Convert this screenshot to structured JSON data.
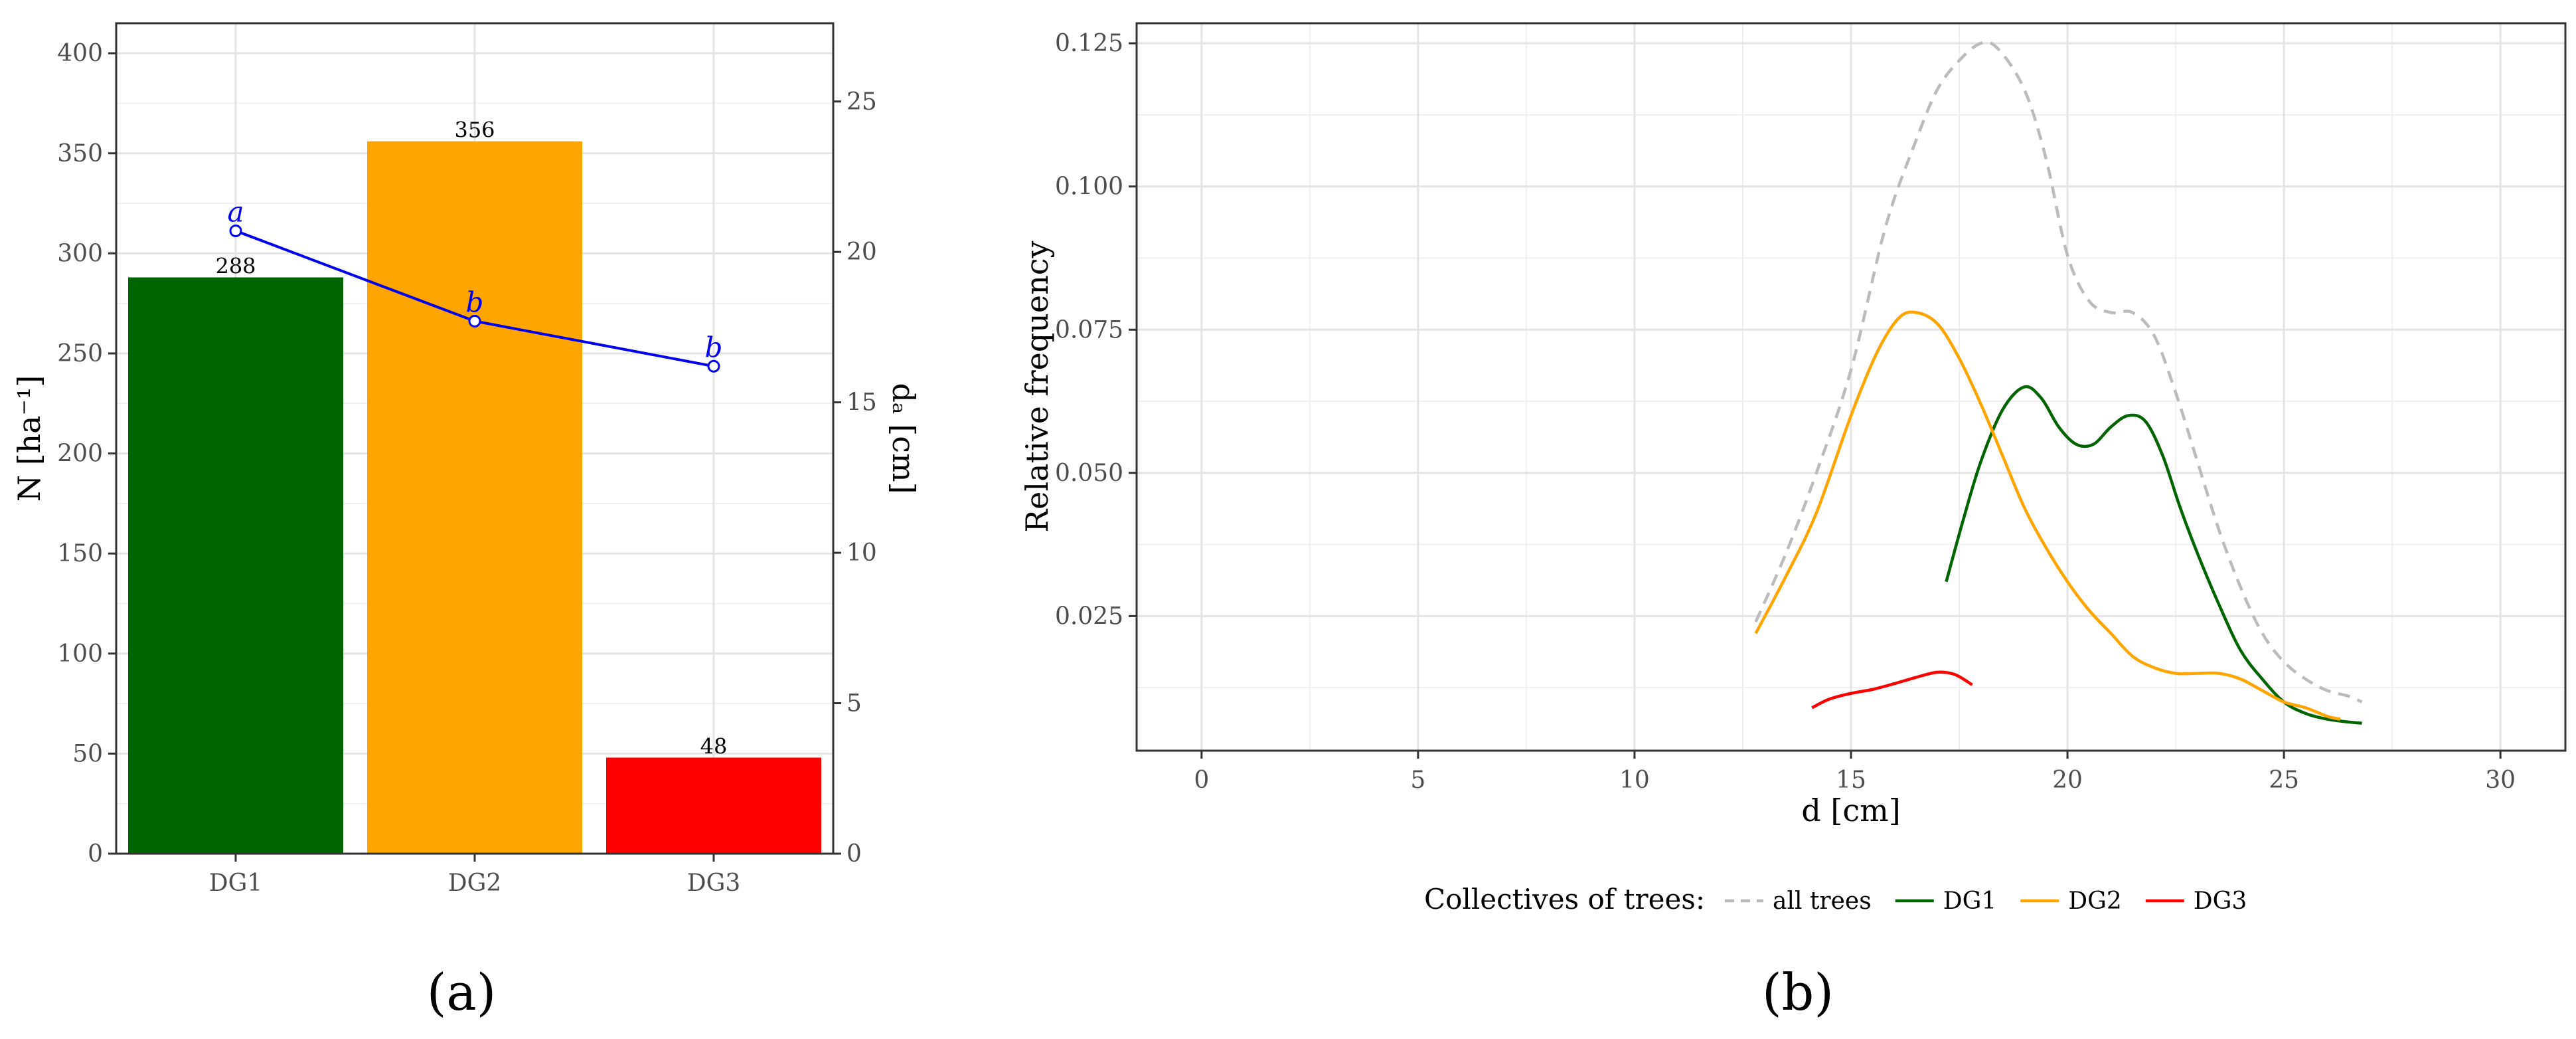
{
  "chart_data": [
    {
      "type": "bar",
      "panel_label": "(a)",
      "categories": [
        "DG1",
        "DG2",
        "DG3"
      ],
      "values": [
        288,
        356,
        48
      ],
      "bar_labels": [
        "288",
        "356",
        "48"
      ],
      "bar_colors": [
        "#006400",
        "#FFA500",
        "#FF0000"
      ],
      "ylabel": "N [ha⁻¹]",
      "ylim": [
        0,
        415
      ],
      "yticks": [
        0,
        50,
        100,
        150,
        200,
        250,
        300,
        350,
        400
      ],
      "secondary_axis": {
        "label": "dₐ [cm]",
        "ylim": [
          0,
          27.6
        ],
        "ticks": [
          0,
          5,
          10,
          15,
          20,
          25
        ]
      },
      "secondary_series": {
        "type": "line",
        "color": "#0000EE",
        "values": [
          20.7,
          17.7,
          16.2
        ],
        "significance_labels": [
          "a",
          "b",
          "b"
        ]
      },
      "grid": true
    },
    {
      "type": "line",
      "panel_label": "(b)",
      "xlabel": "d [cm]",
      "ylabel": "Relative frequency",
      "xlim": [
        -1.5,
        31.5
      ],
      "ylim": [
        0.0015,
        0.1285
      ],
      "xticks": [
        0,
        5,
        10,
        15,
        20,
        25,
        30
      ],
      "yticks": [
        0.025,
        0.05,
        0.075,
        0.1,
        0.125
      ],
      "ytick_labels": [
        "0.025",
        "0.050",
        "0.075",
        "0.100",
        "0.125"
      ],
      "grid": true,
      "legend": {
        "title": "Collectives of trees:",
        "position": "bottom"
      },
      "series": [
        {
          "name": "all trees",
          "color": "#BBBBBB",
          "dashed": true,
          "x": [
            12.8,
            13.5,
            14.2,
            15.0,
            15.8,
            16.5,
            17.0,
            17.5,
            18.0,
            18.4,
            19.0,
            19.5,
            20.0,
            20.5,
            21.0,
            21.5,
            22.0,
            22.5,
            23.0,
            23.5,
            24.0,
            24.5,
            25.0,
            25.5,
            26.0,
            26.5,
            26.8
          ],
          "y": [
            0.024,
            0.036,
            0.05,
            0.068,
            0.093,
            0.108,
            0.117,
            0.122,
            0.125,
            0.124,
            0.117,
            0.105,
            0.088,
            0.08,
            0.078,
            0.078,
            0.074,
            0.064,
            0.052,
            0.04,
            0.03,
            0.022,
            0.017,
            0.014,
            0.012,
            0.011,
            0.01
          ]
        },
        {
          "name": "DG1",
          "color": "#006400",
          "dashed": false,
          "x": [
            17.2,
            17.6,
            18.0,
            18.5,
            19.0,
            19.4,
            19.8,
            20.2,
            20.6,
            21.0,
            21.4,
            21.8,
            22.2,
            22.6,
            23.0,
            23.5,
            24.0,
            24.5,
            25.0,
            25.5,
            26.0,
            26.5,
            26.8
          ],
          "y": [
            0.031,
            0.042,
            0.052,
            0.061,
            0.065,
            0.063,
            0.058,
            0.055,
            0.055,
            0.058,
            0.06,
            0.059,
            0.053,
            0.044,
            0.036,
            0.027,
            0.019,
            0.014,
            0.01,
            0.008,
            0.007,
            0.0065,
            0.0063
          ]
        },
        {
          "name": "DG2",
          "color": "#FFA500",
          "dashed": false,
          "x": [
            12.8,
            13.5,
            14.2,
            15.0,
            15.6,
            16.1,
            16.5,
            17.0,
            17.5,
            18.0,
            18.5,
            19.0,
            19.5,
            20.0,
            20.5,
            21.0,
            21.5,
            22.0,
            22.5,
            23.0,
            23.5,
            24.0,
            24.5,
            25.0,
            25.5,
            26.0,
            26.3
          ],
          "y": [
            0.022,
            0.032,
            0.043,
            0.06,
            0.071,
            0.077,
            0.078,
            0.076,
            0.07,
            0.062,
            0.053,
            0.044,
            0.037,
            0.031,
            0.026,
            0.022,
            0.018,
            0.016,
            0.015,
            0.015,
            0.015,
            0.014,
            0.012,
            0.01,
            0.009,
            0.0075,
            0.007
          ]
        },
        {
          "name": "DG3",
          "color": "#FF0000",
          "dashed": false,
          "x": [
            14.1,
            14.5,
            15.0,
            15.5,
            16.0,
            16.5,
            17.0,
            17.4,
            17.8
          ],
          "y": [
            0.009,
            0.0105,
            0.0115,
            0.0122,
            0.0132,
            0.0143,
            0.0152,
            0.0148,
            0.013
          ]
        }
      ]
    }
  ]
}
